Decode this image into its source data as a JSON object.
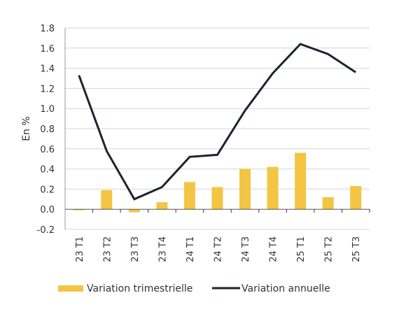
{
  "chart_data": {
    "type": "bar+line",
    "title": "",
    "xlabel": "",
    "ylabel": "En %",
    "ylim": [
      -0.2,
      1.8
    ],
    "yticks": [
      "-0.2",
      "0.0",
      "0.2",
      "0.4",
      "0.6",
      "0.8",
      "1.0",
      "1.2",
      "1.4",
      "1.6",
      "1.8"
    ],
    "ytick_values": [
      -0.2,
      0.0,
      0.2,
      0.4,
      0.6,
      0.8,
      1.0,
      1.2,
      1.4,
      1.6,
      1.8
    ],
    "grid": true,
    "categories": [
      "23 T1",
      "23 T2",
      "23 T3",
      "23 T4",
      "24 T1",
      "24 T2",
      "24 T3",
      "24 T4",
      "25 T1",
      "25 T2",
      "25 T3"
    ],
    "series": [
      {
        "name": "Variation trimestrielle",
        "type": "bar",
        "color": "#F4C542",
        "values": [
          -0.01,
          0.19,
          -0.03,
          0.07,
          0.27,
          0.22,
          0.4,
          0.42,
          0.56,
          0.12,
          0.23
        ]
      },
      {
        "name": "Variation annuelle",
        "type": "line",
        "color": "#1B2430",
        "values": [
          1.33,
          0.58,
          0.1,
          0.22,
          0.52,
          0.54,
          0.98,
          1.35,
          1.64,
          1.54,
          1.36
        ]
      }
    ],
    "legend_position": "bottom"
  }
}
